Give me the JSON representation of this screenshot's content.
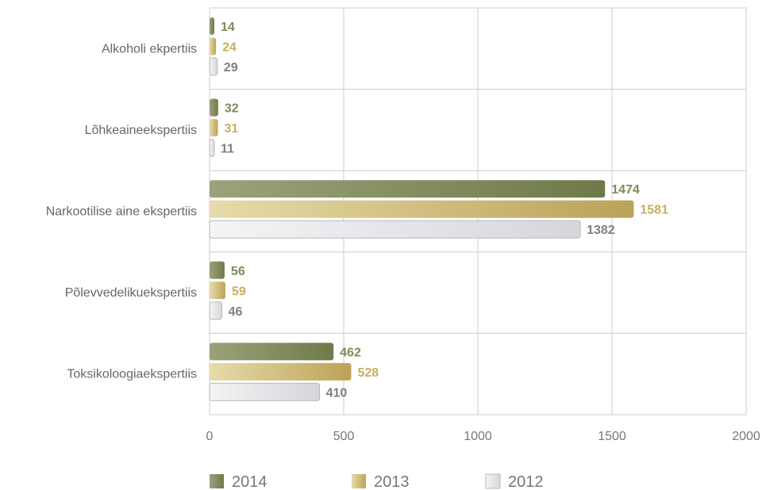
{
  "chart_data": {
    "type": "bar",
    "orientation": "horizontal",
    "categories": [
      "Alkoholi ekpertiis",
      "Lõhkeaineekspertiis",
      "Narkootilise aine ekspertiis",
      "Põlevvedelikuekspertiis",
      "Toksikoloogiaekspertiis"
    ],
    "series": [
      {
        "name": "2014",
        "values": [
          14,
          32,
          1474,
          56,
          462
        ],
        "color": "#7f8a5a",
        "label_color": "#7f8a5a"
      },
      {
        "name": "2013",
        "values": [
          24,
          31,
          1581,
          59,
          528
        ],
        "color": "#c8b46e",
        "label_color": "#c8ae5e"
      },
      {
        "name": "2012",
        "values": [
          29,
          11,
          1382,
          46,
          410
        ],
        "color": "#e4e5e8",
        "label_color": "#808080"
      }
    ],
    "xlim": [
      0,
      2000
    ],
    "xticks": [
      "0",
      "500",
      "1000",
      "1500",
      "2000"
    ],
    "grid": true,
    "legend_position": "bottom"
  }
}
